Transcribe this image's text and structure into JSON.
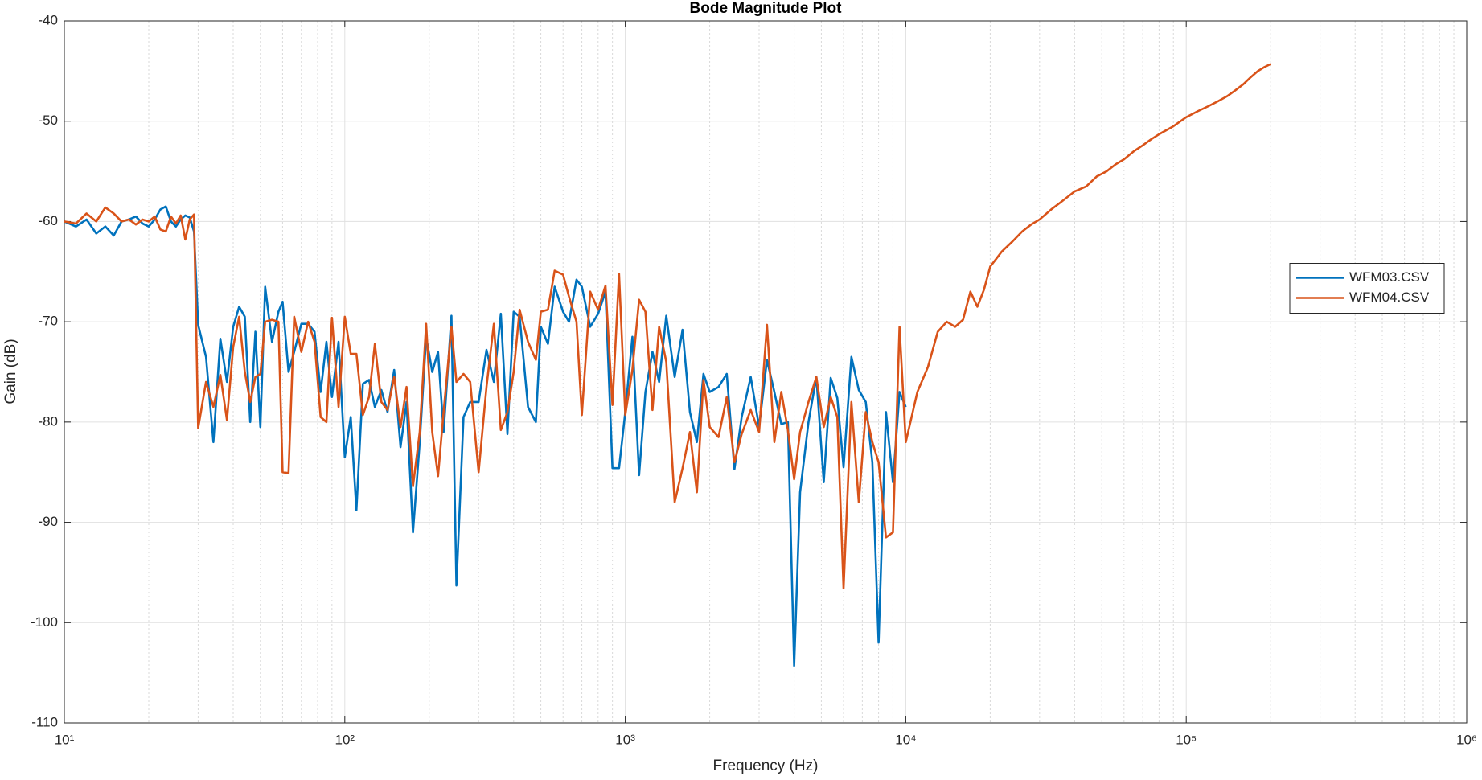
{
  "chart_data": {
    "type": "line",
    "title": "Bode Magnitude Plot",
    "xlabel": "Frequency (Hz)",
    "ylabel": "Gain (dB)",
    "xscale": "log",
    "grid": true,
    "minor_grid": true,
    "legend": "east",
    "xlim": [
      10,
      1000000
    ],
    "xticks": [
      {
        "value": 10,
        "label": "10¹"
      },
      {
        "value": 100,
        "label": "10²"
      },
      {
        "value": 1000,
        "label": "10³"
      },
      {
        "value": 10000,
        "label": "10⁴"
      },
      {
        "value": 100000,
        "label": "10⁵"
      },
      {
        "value": 1000000,
        "label": "10⁶"
      }
    ],
    "ylim": [
      -110,
      -40
    ],
    "yticks": [
      -110,
      -100,
      -90,
      -80,
      -70,
      -60,
      -50,
      -40
    ],
    "x": [
      10,
      11,
      12,
      13,
      14,
      15,
      16,
      17,
      18,
      19,
      20,
      21,
      22,
      23,
      24,
      25,
      26,
      27,
      28,
      29,
      30,
      32,
      34,
      36,
      38,
      40,
      42,
      44,
      46,
      48,
      50,
      52,
      55,
      58,
      60,
      63,
      66,
      70,
      74,
      78,
      82,
      86,
      90,
      95,
      100,
      105,
      110,
      116,
      122,
      128,
      135,
      142,
      150,
      158,
      166,
      175,
      185,
      195,
      205,
      215,
      225,
      240,
      250,
      265,
      280,
      300,
      320,
      340,
      360,
      380,
      400,
      420,
      450,
      480,
      500,
      530,
      560,
      600,
      630,
      670,
      700,
      750,
      800,
      850,
      900,
      950,
      1000,
      1060,
      1120,
      1180,
      1250,
      1320,
      1400,
      1500,
      1600,
      1700,
      1800,
      1900,
      2000,
      2150,
      2300,
      2450,
      2600,
      2800,
      3000,
      3200,
      3400,
      3600,
      3800,
      4000,
      4200,
      4500,
      4800,
      5100,
      5400,
      5700,
      6000,
      6400,
      6800,
      7200,
      7600,
      8000,
      8500,
      9000,
      9500,
      10000,
      11000,
      12000,
      13000,
      14000,
      15000,
      16000,
      17000,
      18000,
      19000,
      20000,
      22000,
      24000,
      26000,
      28000,
      30000,
      33000,
      36000,
      40000,
      44000,
      48000,
      52000,
      56000,
      60000,
      65000,
      70000,
      75000,
      80000,
      90000,
      100000,
      110000,
      120000,
      130000,
      140000,
      150000,
      160000,
      170000,
      180000,
      190000,
      200000
    ],
    "series": [
      {
        "name": "WFM03.CSV",
        "color": "#0072BD",
        "values": [
          -60,
          -60.5,
          -59.8,
          -61.2,
          -60.5,
          -61.4,
          -60,
          -59.8,
          -59.5,
          -60.2,
          -60.5,
          -59.8,
          -58.8,
          -58.5,
          -60,
          -60.5,
          -59.8,
          -59.4,
          -59.6,
          -61,
          -70.3,
          -73.5,
          -82,
          -71.7,
          -76,
          -70.5,
          -68.5,
          -69.5,
          -80,
          -71,
          -80.5,
          -66.5,
          -72,
          -69,
          -68,
          -75,
          -73,
          -70.2,
          -70.2,
          -71,
          -77,
          -72,
          -77.5,
          -72,
          -83.5,
          -79.5,
          -88.8,
          -76.2,
          -75.8,
          -78.5,
          -76.8,
          -79,
          -74.8,
          -82.5,
          -78,
          -91,
          -82,
          -71.5,
          -75,
          -73,
          -81,
          -69.4,
          -96.3,
          -79.5,
          -78,
          -78,
          -72.8,
          -76,
          -69.2,
          -81.2,
          -69,
          -69.5,
          -78.5,
          -80,
          -70.5,
          -72.2,
          -66.5,
          -69,
          -70,
          -65.8,
          -66.5,
          -70.5,
          -69.2,
          -67,
          -84.6,
          -84.6,
          -79,
          -71.5,
          -85.3,
          -77,
          -73,
          -76,
          -69.4,
          -75.5,
          -70.8,
          -79,
          -82,
          -75.2,
          -77,
          -76.5,
          -75.2,
          -84.7,
          -79.5,
          -75.5,
          -80.5,
          -73.8,
          -77,
          -80.2,
          -80,
          -104.3,
          -87,
          -80,
          -75.5,
          -86,
          -75.6,
          -77.6,
          -84.5,
          -73.5,
          -76.8,
          -78,
          -84,
          -102,
          -79,
          -86,
          -77,
          -78.5,
          null,
          null,
          null,
          null,
          null,
          null,
          null,
          null,
          null,
          null,
          null,
          null,
          null,
          null,
          null,
          null,
          null,
          null,
          null,
          null,
          null,
          null,
          null,
          null,
          null,
          null,
          null,
          null,
          null,
          null,
          null,
          null,
          null,
          null,
          null,
          null,
          null,
          null,
          null
        ]
      },
      {
        "name": "WFM04.CSV",
        "color": "#D95319",
        "values": [
          -60,
          -60.2,
          -59.2,
          -60,
          -58.6,
          -59.2,
          -60,
          -59.8,
          -60.3,
          -59.8,
          -60,
          -59.5,
          -60.8,
          -61,
          -59.5,
          -60.2,
          -59.4,
          -61.8,
          -59.8,
          -59.3,
          -80.6,
          -76,
          -78.5,
          -75.3,
          -79.8,
          -72.5,
          -69.5,
          -75,
          -78,
          -75.5,
          -75.2,
          -70,
          -69.8,
          -70,
          -85,
          -85.1,
          -69.5,
          -73,
          -70,
          -72,
          -79.5,
          -80,
          -69.6,
          -78.5,
          -69.5,
          -73.2,
          -73.2,
          -79.3,
          -77.5,
          -72.2,
          -78,
          -78.8,
          -75.5,
          -80.5,
          -76.5,
          -86.4,
          -81,
          -70.2,
          -81,
          -85.4,
          -79,
          -70.5,
          -76,
          -75.2,
          -76,
          -85,
          -76.5,
          -70.2,
          -80.8,
          -79,
          -75,
          -68.8,
          -72,
          -73.8,
          -69,
          -68.8,
          -64.9,
          -65.3,
          -67.5,
          -70,
          -79.3,
          -67,
          -68.8,
          -66.4,
          -78.3,
          -65.2,
          -79.3,
          -74.8,
          -67.8,
          -69,
          -78.8,
          -70.5,
          -74,
          -88,
          -84.6,
          -81,
          -87,
          -75.8,
          -80.5,
          -81.5,
          -77.5,
          -84,
          -81.2,
          -78.8,
          -81,
          -70.3,
          -82,
          -77,
          -80.8,
          -85.7,
          -81,
          -78,
          -75.5,
          -80.5,
          -77.5,
          -79.5,
          -96.6,
          -78,
          -88,
          -79,
          -82,
          -84,
          -91.5,
          -91,
          -70.5,
          -82,
          -77,
          -74.5,
          -71,
          -70,
          -70.5,
          -69.8,
          -67,
          -68.5,
          -66.8,
          -64.5,
          -63,
          -62,
          -61,
          -60.3,
          -59.8,
          -58.8,
          -58,
          -57,
          -56.5,
          -55.5,
          -55,
          -54.3,
          -53.8,
          -53,
          -52.4,
          -51.8,
          -51.3,
          -50.5,
          -49.6,
          -49,
          -48.5,
          -48,
          -47.5,
          -46.9,
          -46.3,
          -45.6,
          -45,
          -44.6,
          -44.3
        ]
      }
    ]
  }
}
